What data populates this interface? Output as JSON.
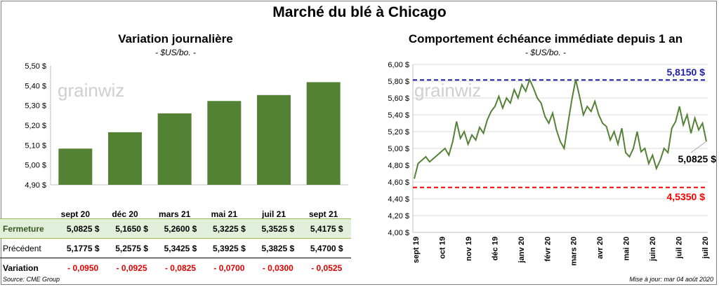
{
  "title": "Marché du blé à Chicago",
  "source": "Source: CME Group",
  "updated": "Mise à jour: mar 04 août 2020",
  "watermark": "grainwiz",
  "colors": {
    "bar": "#548235",
    "line": "#548235",
    "upper": "#1f1fa8",
    "lower": "#ff0000",
    "variation": "#e00000"
  },
  "chart_data": [
    {
      "type": "bar",
      "title": "Variation  journalière",
      "unit": "- $US/bo. -",
      "categories": [
        "sept 20",
        "déc 20",
        "mars 21",
        "mai 21",
        "juil 21",
        "sept 21"
      ],
      "values": [
        5.0825,
        5.165,
        5.26,
        5.3225,
        5.3525,
        5.4175
      ],
      "ylim": [
        4.9,
        5.5
      ],
      "yticks": [
        4.9,
        5.0,
        5.1,
        5.2,
        5.3,
        5.4,
        5.5
      ],
      "ytick_labels": [
        "4,90 $",
        "5,00 $",
        "5,10 $",
        "5,20 $",
        "5,30 $",
        "5,40 $",
        "5,50 $"
      ]
    },
    {
      "type": "line",
      "title": "Comportement  échéance immédiate depuis 1 an",
      "unit": "- $US/bo. -",
      "x_labels": [
        "sept 19",
        "oct 19",
        "nov 19",
        "déc 19",
        "janv 20",
        "févr 20",
        "mars 20",
        "avr 20",
        "mai 20",
        "juin 20",
        "juil 20",
        "juil 20"
      ],
      "ylim": [
        4.0,
        6.0
      ],
      "yticks": [
        4.0,
        4.2,
        4.4,
        4.6,
        4.8,
        5.0,
        5.2,
        5.4,
        5.6,
        5.8,
        6.0
      ],
      "ytick_labels": [
        "4,00 $",
        "4,20 $",
        "4,40 $",
        "4,60 $",
        "4,80 $",
        "5,00 $",
        "5,20 $",
        "5,40 $",
        "5,60 $",
        "5,80 $",
        "6,00 $"
      ],
      "upper_line": {
        "value": 5.815,
        "label": "5,8150 $"
      },
      "lower_line": {
        "value": 4.535,
        "label": "4,5350 $"
      },
      "last_label": "5,0825 $",
      "series": [
        {
          "values": [
            4.64,
            4.82,
            4.86,
            4.9,
            4.84,
            4.88,
            4.92,
            4.96,
            5.0,
            4.92,
            5.08,
            5.32,
            5.12,
            5.2,
            5.05,
            5.16,
            5.1,
            5.25,
            5.18,
            5.34,
            5.44,
            5.5,
            5.62,
            5.48,
            5.6,
            5.54,
            5.7,
            5.6,
            5.76,
            5.68,
            5.82,
            5.72,
            5.6,
            5.54,
            5.38,
            5.3,
            5.42,
            5.22,
            5.08,
            5.0,
            5.3,
            5.58,
            5.82,
            5.62,
            5.4,
            5.5,
            5.44,
            5.56,
            5.4,
            5.3,
            5.26,
            5.1,
            5.2,
            5.05,
            5.24,
            4.95,
            4.9,
            5.0,
            5.2,
            4.96,
            5.0,
            4.82,
            4.92,
            4.76,
            4.86,
            5.0,
            4.95,
            5.24,
            5.32,
            5.5,
            5.28,
            5.4,
            5.18,
            5.36,
            5.22,
            5.3,
            5.0825
          ]
        }
      ]
    }
  ],
  "table": {
    "rows": [
      {
        "label": "Fermeture",
        "values": [
          "5,0825  $",
          "5,1650  $",
          "5,2600  $",
          "5,3225  $",
          "5,3525  $",
          "5,4175  $"
        ]
      },
      {
        "label": "Précédent",
        "values": [
          "5,1775  $",
          "5,2575  $",
          "5,3425  $",
          "5,3925  $",
          "5,3825  $",
          "5,4700  $"
        ]
      },
      {
        "label": "Variation",
        "values": [
          "- 0,0950",
          "- 0,0925",
          "- 0,0825",
          "- 0,0700",
          "- 0,0300",
          "- 0,0525"
        ]
      }
    ]
  }
}
